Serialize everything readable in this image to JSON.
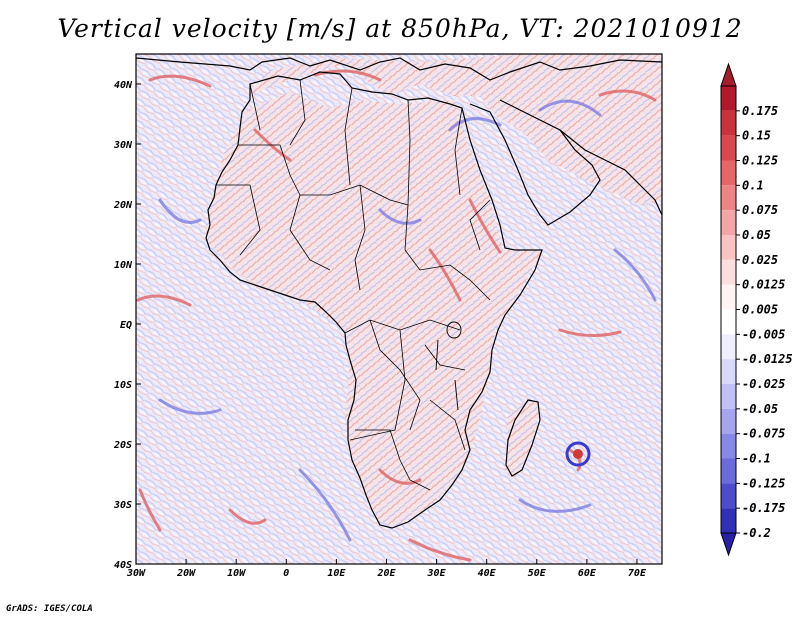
{
  "title": "Vertical velocity [m/s] at 850hPa, VT: 2021010912",
  "credit": "GrADS: IGES/COLA",
  "map": {
    "type": "map",
    "variable": "Vertical velocity",
    "units": "m/s",
    "level": "850hPa",
    "valid_time": "2021010912",
    "lon_range": [
      -30,
      75
    ],
    "lat_range": [
      -40,
      45
    ],
    "x_ticks": [
      {
        "value": -30,
        "label": "30W"
      },
      {
        "value": -20,
        "label": "20W"
      },
      {
        "value": -10,
        "label": "10W"
      },
      {
        "value": 0,
        "label": "0"
      },
      {
        "value": 10,
        "label": "10E"
      },
      {
        "value": 20,
        "label": "20E"
      },
      {
        "value": 30,
        "label": "30E"
      },
      {
        "value": 40,
        "label": "40E"
      },
      {
        "value": 50,
        "label": "50E"
      },
      {
        "value": 60,
        "label": "60E"
      },
      {
        "value": 70,
        "label": "70E"
      }
    ],
    "y_ticks": [
      {
        "value": 40,
        "label": "40N"
      },
      {
        "value": 30,
        "label": "30N"
      },
      {
        "value": 20,
        "label": "20N"
      },
      {
        "value": 10,
        "label": "10N"
      },
      {
        "value": 0,
        "label": "EQ"
      },
      {
        "value": -10,
        "label": "10S"
      },
      {
        "value": -20,
        "label": "20S"
      },
      {
        "value": -30,
        "label": "30S"
      },
      {
        "value": -40,
        "label": "40S"
      }
    ]
  },
  "colorbar": {
    "levels": [
      {
        "label": "0.175",
        "color": "#b2182b"
      },
      {
        "label": "0.15",
        "color": "#c8323a"
      },
      {
        "label": "0.125",
        "color": "#d9484e"
      },
      {
        "label": "0.1",
        "color": "#e56666"
      },
      {
        "label": "0.075",
        "color": "#ee8585"
      },
      {
        "label": "0.05",
        "color": "#f4a5a5"
      },
      {
        "label": "0.025",
        "color": "#f9c3c3"
      },
      {
        "label": "0.0125",
        "color": "#fcdede"
      },
      {
        "label": "0.005",
        "color": "#fff3f3"
      },
      {
        "label": "-0.005",
        "color": "#ffffff"
      },
      {
        "label": "-0.0125",
        "color": "#eeeeff"
      },
      {
        "label": "-0.025",
        "color": "#d9d9fa"
      },
      {
        "label": "-0.05",
        "color": "#c0c0f5"
      },
      {
        "label": "-0.075",
        "color": "#a5a5ef"
      },
      {
        "label": "-0.1",
        "color": "#8888e6"
      },
      {
        "label": "-0.125",
        "color": "#6b6bdc"
      },
      {
        "label": "-0.175",
        "color": "#4c4ccd"
      },
      {
        "label": "-0.2",
        "color": "#2f2fb8"
      }
    ],
    "top_color": "#a51d2a",
    "bottom_color": "#2a1fa8"
  }
}
